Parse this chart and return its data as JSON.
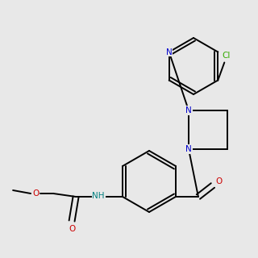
{
  "background_color": "#e8e8e8",
  "BLACK": "#000000",
  "BLUE": "#0000cc",
  "RED": "#cc0000",
  "GREEN": "#33aa00",
  "TEAL": "#008080",
  "lw": 1.4,
  "fontsize": 7.5
}
